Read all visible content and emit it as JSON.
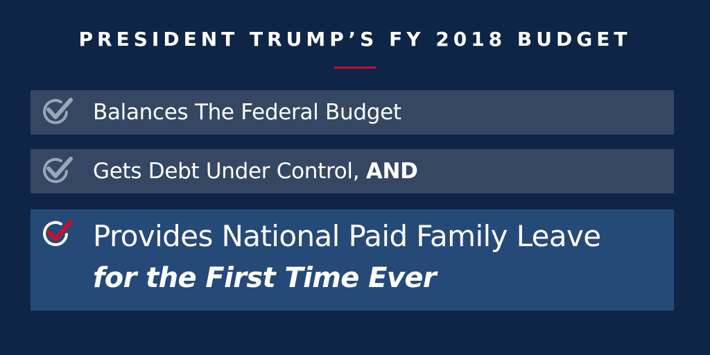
{
  "header": {
    "title": "PRESIDENT TRUMP’S FY 2018 BUDGET"
  },
  "items": [
    {
      "icon": "check-circle-icon",
      "text": "Balances The Federal Budget",
      "bold": ""
    },
    {
      "icon": "check-circle-icon",
      "text": "Gets Debt Under Control, ",
      "bold": "AND"
    },
    {
      "icon": "check-circle-red-icon",
      "line1": "Provides National Paid Family Leave",
      "line2": "for the First Time Ever"
    }
  ],
  "colors": {
    "background": "#0f2547",
    "row": "#354763",
    "highlight_row": "#254a78",
    "accent_red": "#c8102e",
    "check_gray": "#9aa6b8"
  }
}
